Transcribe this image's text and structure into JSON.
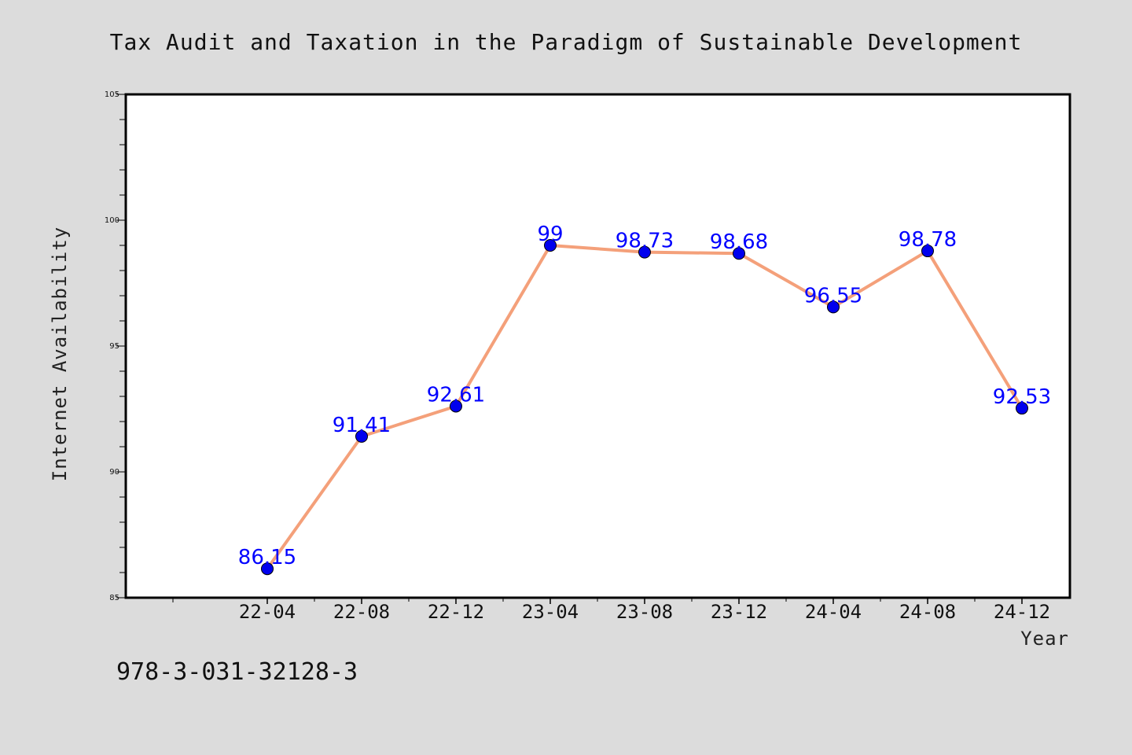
{
  "chart_data": {
    "type": "line",
    "title": "Tax Audit and Taxation in the Paradigm of Sustainable Development",
    "xlabel": "Year",
    "ylabel": "Internet Availability",
    "categories": [
      "22-04",
      "22-08",
      "22-12",
      "23-04",
      "23-08",
      "23-12",
      "24-04",
      "24-08",
      "24-12"
    ],
    "series": [
      {
        "values": [
          86.15,
          91.41,
          92.61,
          99,
          98.73,
          98.68,
          96.55,
          98.78,
          92.53
        ],
        "labels": [
          "86.15",
          "91.41",
          "92.61",
          "99",
          "98.73",
          "98.68",
          "96.55",
          "98.78",
          "92.53"
        ],
        "line_color": "#f4a07a",
        "marker_color": "#0000ee"
      }
    ],
    "ylim": [
      85,
      105
    ],
    "yticks": [
      "85",
      "90",
      "95",
      "100",
      "105"
    ],
    "grid": false,
    "legend": "none"
  },
  "footer_text": "978-3-031-32128-3",
  "colors": {
    "background": "#dcdcdc",
    "plot_background": "#ffffff",
    "data_label": "#0000ff"
  }
}
